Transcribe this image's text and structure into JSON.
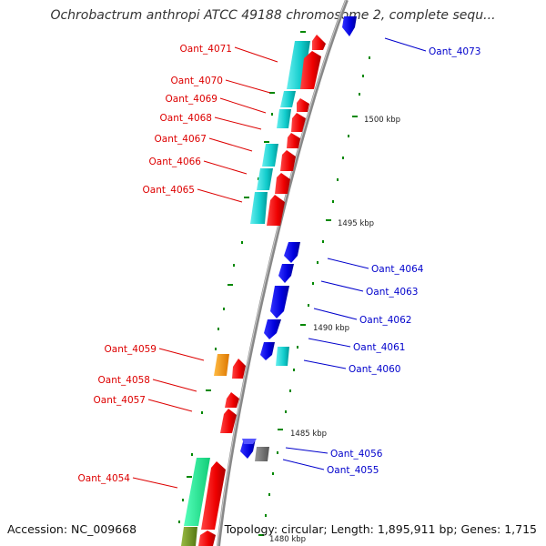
{
  "title": "Ochrobactrum anthropi ATCC 49188 chromosome 2, complete sequ...",
  "footer": {
    "accession": "Accession: NC_009668",
    "summary": "Topology: circular; Length: 1,895,911 bp; Genes: 1,715"
  },
  "colors": {
    "forward": "#ff0000",
    "reverse": "#0000ee",
    "cyan": "#11cccc",
    "orange": "#ff9900",
    "gray": "#777777",
    "green": "#22ee99",
    "olive": "#779922"
  },
  "scale_labels": [
    "1500 kbp",
    "1495 kbp",
    "1490 kbp",
    "1485 kbp",
    "1480 kbp"
  ],
  "genes_left": [
    "Oant_4071",
    "Oant_4070",
    "Oant_4069",
    "Oant_4068",
    "Oant_4067",
    "Oant_4066",
    "Oant_4065",
    "Oant_4059",
    "Oant_4058",
    "Oant_4057",
    "Oant_4054"
  ],
  "genes_right": [
    "Oant_4073",
    "Oant_4064",
    "Oant_4063",
    "Oant_4062",
    "Oant_4061",
    "Oant_4060",
    "Oant_4056",
    "Oant_4055"
  ]
}
